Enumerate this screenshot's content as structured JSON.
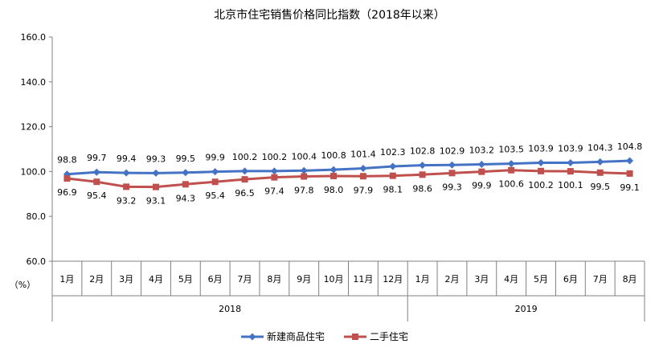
{
  "chart_data": {
    "type": "line",
    "title": "北京市住宅销售价格同比指数（2018年以来）",
    "y_unit": "（%）",
    "ylim": [
      60,
      160
    ],
    "y_ticks": [
      "60.0",
      "80.0",
      "100.0",
      "120.0",
      "140.0",
      "160.0"
    ],
    "grid": false,
    "legend_position": "bottom",
    "categories": [
      "1月",
      "2月",
      "3月",
      "4月",
      "5月",
      "6月",
      "7月",
      "8月",
      "9月",
      "10月",
      "11月",
      "12月",
      "1月",
      "2月",
      "3月",
      "4月",
      "5月",
      "6月",
      "7月",
      "8月"
    ],
    "groups": [
      {
        "label": "2018",
        "count": 12
      },
      {
        "label": "2019",
        "count": 8
      }
    ],
    "series": [
      {
        "name": "新建商品住宅",
        "color": "#4472C4",
        "marker": "diamond",
        "label_position": "above",
        "values": [
          98.8,
          99.7,
          99.4,
          99.3,
          99.5,
          99.9,
          100.2,
          100.2,
          100.4,
          100.8,
          101.4,
          102.3,
          102.8,
          102.9,
          103.2,
          103.5,
          103.9,
          103.9,
          104.3,
          104.8
        ]
      },
      {
        "name": "二手住宅",
        "color": "#C0504D",
        "marker": "square",
        "label_position": "below",
        "values": [
          96.9,
          95.4,
          93.2,
          93.1,
          94.3,
          95.4,
          96.5,
          97.4,
          97.8,
          98.0,
          97.9,
          98.1,
          98.6,
          99.3,
          99.9,
          100.6,
          100.2,
          100.1,
          99.5,
          99.1
        ]
      }
    ]
  }
}
